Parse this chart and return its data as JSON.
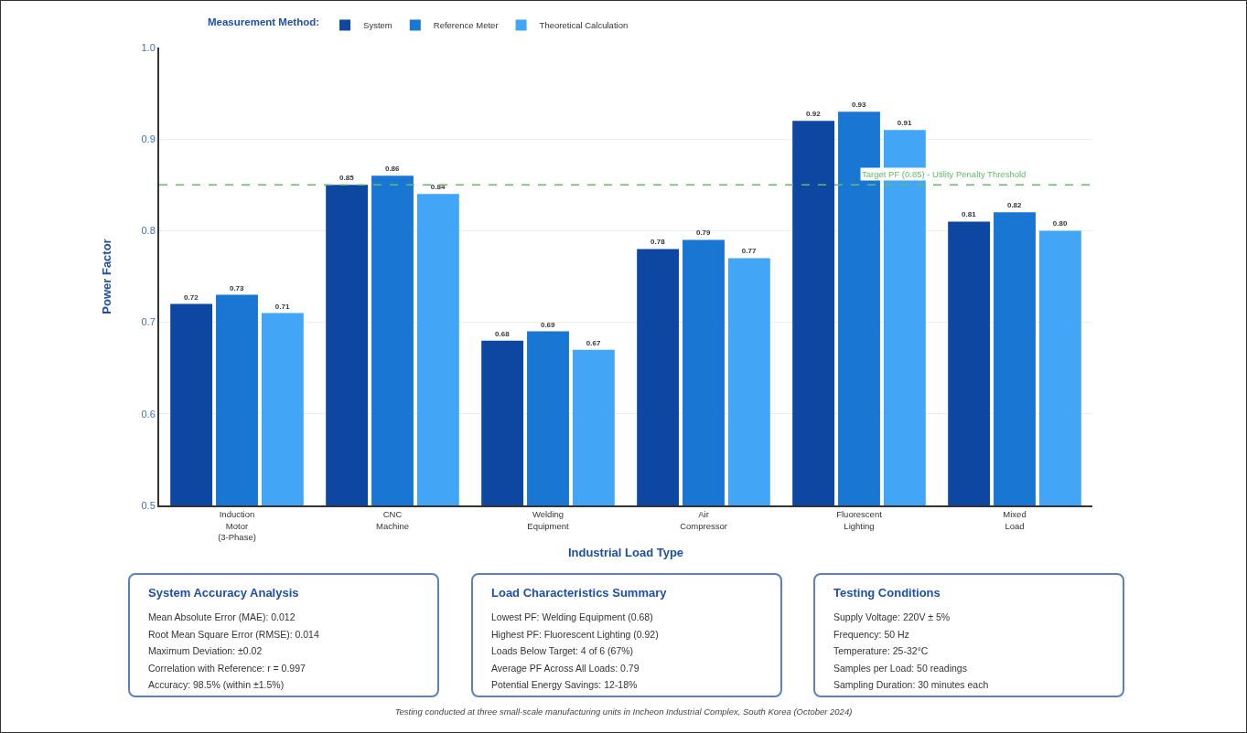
{
  "chart_data": {
    "type": "bar",
    "xlabel": "Industrial Load Type",
    "ylabel": "Power Factor",
    "legend_title": "Measurement Method:",
    "legend": "top",
    "categories": [
      "Induction Motor (3-Phase)",
      "CNC Machine",
      "Welding Equipment",
      "Air Compressor",
      "Fluorescent Lighting",
      "Mixed Load"
    ],
    "series": [
      {
        "name": "System",
        "color": "#0d47a1",
        "values": [
          0.72,
          0.85,
          0.68,
          0.78,
          0.92,
          0.81
        ],
        "value_labels": [
          "0.72",
          "0.85",
          "0.68",
          "0.78",
          "0.92",
          "0.81"
        ]
      },
      {
        "name": "Reference Meter",
        "color": "#1976d2",
        "values": [
          0.73,
          0.86,
          0.69,
          0.79,
          0.93,
          0.82
        ],
        "value_labels": [
          "0.73",
          "0.86",
          "0.69",
          "0.79",
          "0.93",
          "0.82"
        ]
      },
      {
        "name": "Theoretical Calculation",
        "color": "#42a5f5",
        "values": [
          0.71,
          0.84,
          0.67,
          0.77,
          0.91,
          0.8
        ],
        "value_labels": [
          "0.71",
          "0.84",
          "0.67",
          "0.77",
          "0.91",
          "0.80"
        ]
      }
    ],
    "ylim": [
      0.5,
      1.0
    ],
    "yticks": [
      {
        "value": 0.5,
        "label": "0.5"
      },
      {
        "value": 0.6,
        "label": "0.6"
      },
      {
        "value": 0.7,
        "label": "0.7"
      },
      {
        "value": 0.8,
        "label": "0.8"
      },
      {
        "value": 0.9,
        "label": "0.9"
      },
      {
        "value": 1.0,
        "label": "1.0"
      }
    ],
    "grid": "y",
    "ref_lines": [
      {
        "axis": "y",
        "value": 0.85,
        "label": "Target PF (0.85) - Utility Penalty Threshold",
        "color": "#66bb6a",
        "line_style": "dashed"
      }
    ],
    "annotations": [
      "System Accuracy Analysis\nMean Absolute Error (MAE): 0.012\nRoot Mean Square Error (RMSE): 0.014\nMaximum Deviation: ±0.02\nCorrelation with Reference: r = 0.997\nAccuracy: 98.5% (within ±1.5%)",
      "Load Characteristics Summary\nLowest PF: Welding Equipment (0.68)\nHighest PF: Fluorescent Lighting (0.92)\nLoads Below Target: 4 of 6 (67%)\nAverage PF Across All Loads: 0.79\nPotential Energy Savings: 12-18%",
      "Testing Conditions\nSupply Voltage: 220V ± 5%\nFrequency: 50 Hz\nTemperature: 25-32°C\nSamples per Load: 50 readings\nSampling Duration: 30 minutes each",
      "Testing conducted at three small-scale manufacturing units in Incheon Industrial Complex, South Korea (October 2024)"
    ]
  }
}
